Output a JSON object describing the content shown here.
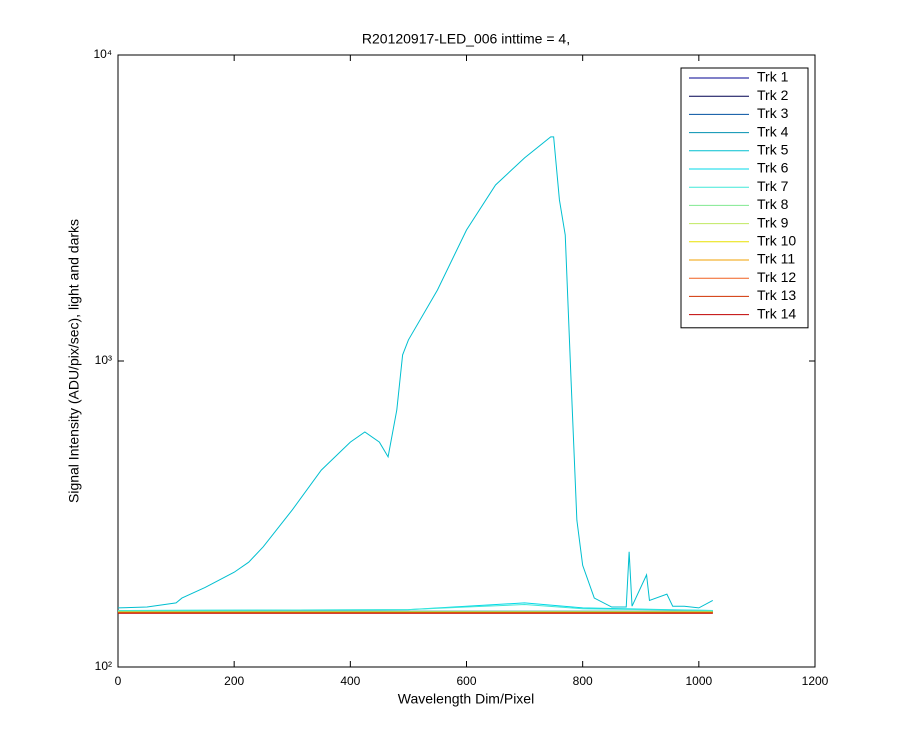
{
  "chart_data": {
    "type": "line",
    "title": "R20120917-LED_006 inttime = 4,",
    "x_label": "Wavelength Dim/Pixel",
    "y_label": "Signal Intensity (ADU/pix/sec), light and darks",
    "xlim": [
      0,
      1200
    ],
    "xticks": [
      0,
      200,
      400,
      600,
      800,
      1000,
      1200
    ],
    "ylim": [
      100,
      10000
    ],
    "y_scale": "log",
    "yticks": [
      {
        "value": 100,
        "label": "10²"
      },
      {
        "value": 1000,
        "label": "10³"
      },
      {
        "value": 10000,
        "label": "10⁴"
      }
    ],
    "grid": false,
    "legend": "upper right",
    "series": [
      {
        "name": "Trk 1",
        "color": "#000090",
        "x": [
          0,
          1024
        ],
        "values": [
          152,
          152
        ]
      },
      {
        "name": "Trk 2",
        "color": "#000050",
        "x": [
          0,
          1024
        ],
        "values": [
          151,
          151
        ]
      },
      {
        "name": "Trk 3",
        "color": "#0050a0",
        "x": [
          0,
          1024
        ],
        "values": [
          152,
          152
        ]
      },
      {
        "name": "Trk 4",
        "color": "#0090b0",
        "x": [
          0,
          1024
        ],
        "values": [
          152,
          152
        ]
      },
      {
        "name": "Trk 5",
        "color": "#00bfd0",
        "x": [
          0,
          50,
          100,
          110,
          150,
          200,
          225,
          250,
          300,
          350,
          400,
          425,
          450,
          465,
          480,
          490,
          500,
          550,
          600,
          650,
          700,
          745,
          750,
          760,
          770,
          780,
          790,
          800,
          820,
          850,
          875,
          880,
          885,
          910,
          915,
          945,
          955,
          975,
          1000,
          1024
        ],
        "values": [
          156,
          157,
          162,
          168,
          182,
          204,
          220,
          247,
          326,
          440,
          543,
          586,
          543,
          486,
          692,
          1047,
          1172,
          1706,
          2680,
          3760,
          4610,
          5400,
          5400,
          3360,
          2580,
          867,
          302,
          215,
          168,
          157,
          157,
          238,
          158,
          200,
          165,
          173,
          158,
          158,
          156,
          165
        ]
      },
      {
        "name": "Trk 6",
        "color": "#00d8e8",
        "x": [
          0,
          500,
          600,
          700,
          800,
          1024
        ],
        "values": [
          153,
          154,
          158,
          162,
          156,
          153
        ]
      },
      {
        "name": "Trk 7",
        "color": "#40e8d8",
        "x": [
          0,
          500,
          600,
          700,
          800,
          1024
        ],
        "values": [
          153,
          154,
          157,
          160,
          155,
          153
        ]
      },
      {
        "name": "Trk 8",
        "color": "#80e890",
        "x": [
          0,
          1024
        ],
        "values": [
          152,
          152
        ]
      },
      {
        "name": "Trk 9",
        "color": "#c0e860",
        "x": [
          0,
          1024
        ],
        "values": [
          151,
          151
        ]
      },
      {
        "name": "Trk 10",
        "color": "#e8e000",
        "x": [
          0,
          1024
        ],
        "values": [
          151,
          151
        ]
      },
      {
        "name": "Trk 11",
        "color": "#f0a000",
        "x": [
          0,
          1024
        ],
        "values": [
          151,
          151
        ]
      },
      {
        "name": "Trk 12",
        "color": "#f06020",
        "x": [
          0,
          1024
        ],
        "values": [
          150,
          150
        ]
      },
      {
        "name": "Trk 13",
        "color": "#d03000",
        "x": [
          0,
          1024
        ],
        "values": [
          150,
          150
        ]
      },
      {
        "name": "Trk 14",
        "color": "#c00000",
        "x": [
          0,
          1024
        ],
        "values": [
          150,
          150
        ]
      }
    ]
  }
}
